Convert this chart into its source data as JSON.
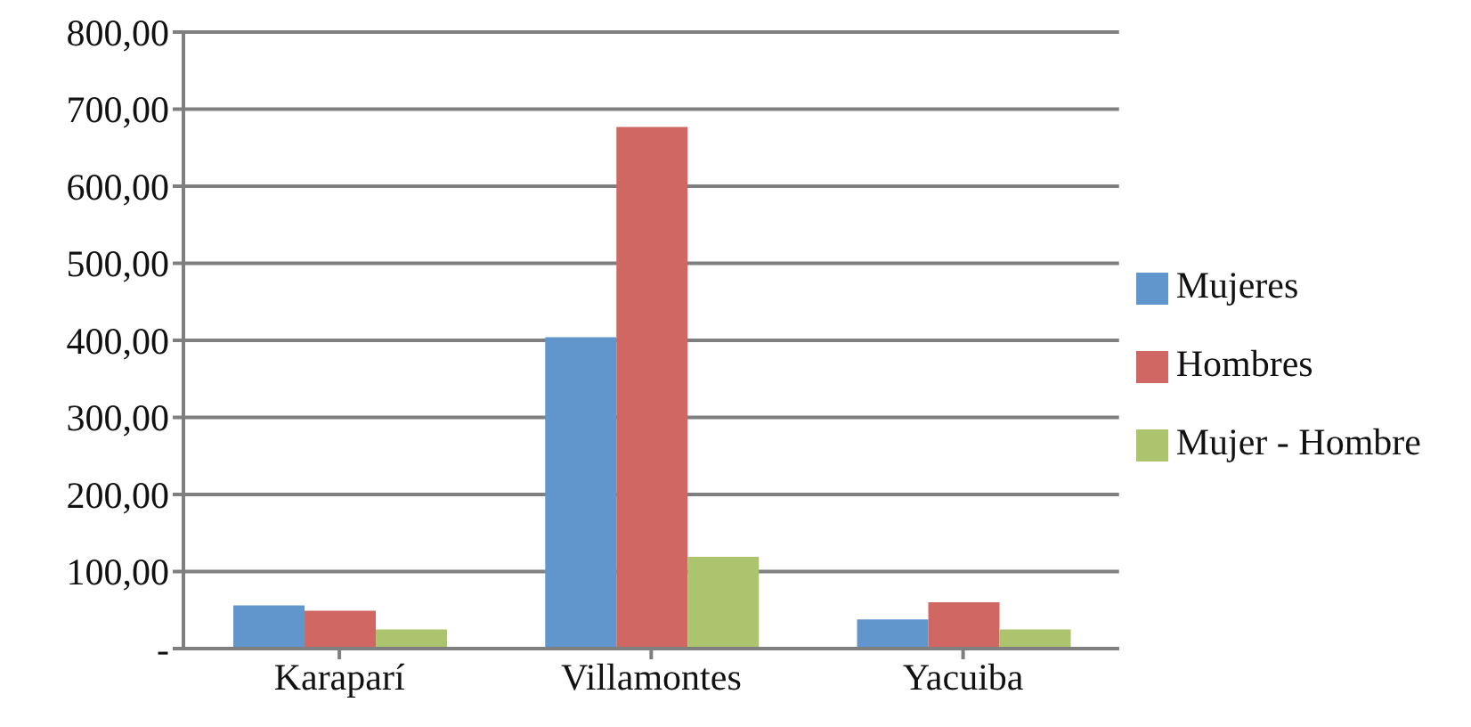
{
  "chart_data": {
    "type": "bar",
    "categories": [
      "Karaparí",
      "Villamontes",
      "Yacuiba"
    ],
    "series": [
      {
        "name": "Mujeres",
        "color": "#6096cb",
        "values": [
          56,
          404,
          38
        ]
      },
      {
        "name": "Hombres",
        "color": "#d06762",
        "values": [
          49,
          677,
          60
        ]
      },
      {
        "name": "Mujer - Hombre",
        "color": "#abc46d",
        "values": [
          25,
          119,
          25
        ]
      }
    ],
    "ylim": [
      0,
      800
    ],
    "yticks": [
      {
        "value": 0,
        "label": "-"
      },
      {
        "value": 100,
        "label": "100,00"
      },
      {
        "value": 200,
        "label": "200,00"
      },
      {
        "value": 300,
        "label": "300,00"
      },
      {
        "value": 400,
        "label": "400,00"
      },
      {
        "value": 500,
        "label": "500,00"
      },
      {
        "value": 600,
        "label": "600,00"
      },
      {
        "value": 700,
        "label": "700,00"
      },
      {
        "value": 800,
        "label": "800,00"
      }
    ],
    "grid": "y",
    "legend": "right"
  }
}
